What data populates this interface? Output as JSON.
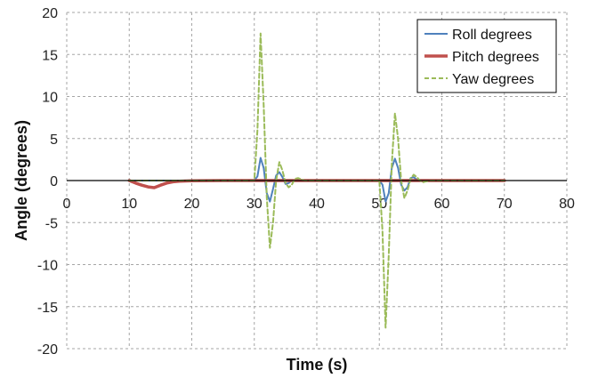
{
  "chart_data": {
    "type": "line",
    "xlabel": "Time (s)",
    "ylabel": "Angle (degrees)",
    "xlim": [
      0,
      80
    ],
    "ylim": [
      -20,
      20
    ],
    "xticks": [
      0,
      10,
      20,
      30,
      40,
      50,
      60,
      70,
      80
    ],
    "yticks": [
      -20,
      -15,
      -10,
      -5,
      0,
      5,
      10,
      15,
      20
    ],
    "grid": "dashed",
    "legend_position": "top-right",
    "series": [
      {
        "name": "Roll degrees",
        "color": "#4f81bd",
        "style": "solid",
        "x": [
          10,
          30,
          30.5,
          31,
          31.5,
          32,
          32.5,
          33,
          33.5,
          34,
          34.5,
          35,
          35.5,
          36,
          37,
          38,
          50,
          50.5,
          51,
          51.5,
          52,
          52.5,
          53,
          53.5,
          54,
          54.5,
          55,
          55.5,
          56,
          57,
          58,
          70
        ],
        "y": [
          0,
          0,
          0.5,
          2.7,
          1.5,
          -1.5,
          -2.5,
          -1.0,
          0.6,
          1.0,
          0.4,
          -0.4,
          -0.3,
          0.0,
          0.1,
          0,
          0,
          -0.5,
          -2.5,
          -1.5,
          1.5,
          2.6,
          1.5,
          -0.5,
          -1.2,
          -0.8,
          0.3,
          0.4,
          0.1,
          -0.1,
          0,
          0
        ]
      },
      {
        "name": "Pitch degrees",
        "color": "#c0504d",
        "style": "solid",
        "x": [
          10,
          11,
          12,
          13,
          14,
          15,
          16,
          17,
          18,
          20,
          25,
          30,
          35,
          40,
          50,
          60,
          70
        ],
        "y": [
          0,
          -0.3,
          -0.55,
          -0.75,
          -0.85,
          -0.55,
          -0.3,
          -0.15,
          -0.08,
          -0.02,
          0,
          0,
          0,
          0,
          0,
          0,
          0
        ]
      },
      {
        "name": "Yaw degrees",
        "color": "#9bbb59",
        "style": "dashed",
        "x": [
          10,
          30,
          30.5,
          31,
          31.5,
          32,
          32.5,
          33,
          33.5,
          34,
          34.5,
          35,
          35.5,
          36,
          36.5,
          37,
          38,
          50,
          50.5,
          51,
          51.5,
          52,
          52.5,
          53,
          53.5,
          54,
          54.5,
          55,
          55.5,
          56,
          56.5,
          57,
          58,
          70
        ],
        "y": [
          0,
          0,
          6,
          17.5,
          9,
          -2,
          -8,
          -5,
          0,
          2.2,
          1.2,
          -0.3,
          -0.8,
          -0.5,
          0.2,
          0.3,
          0,
          0,
          -6,
          -17.5,
          -9,
          2,
          8,
          5,
          0,
          -2.1,
          -1.2,
          0.2,
          0.7,
          0.4,
          0,
          -0.2,
          0,
          0
        ]
      }
    ]
  }
}
